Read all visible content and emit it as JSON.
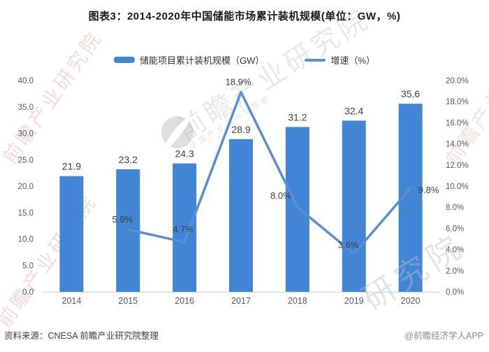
{
  "title": "图表3：2014-2020年中国储能市场累计装机规模(单位：GW，%)",
  "footer": {
    "source": "资料来源：CNESA 前瞻产业研究院整理",
    "copyright": "@前瞻经济学人APP"
  },
  "watermark": {
    "brand": "前瞻产业研究院",
    "sub": "中国产业咨询领导者",
    "fragment": "研究院"
  },
  "chart_data": {
    "type": "bar",
    "subtype": "bar+line combo, dual axis",
    "categories": [
      "2014",
      "2015",
      "2016",
      "2017",
      "2018",
      "2019",
      "2020"
    ],
    "series": [
      {
        "name": "储能项目累计装机规模（GW）",
        "type": "bar",
        "axis": "left",
        "color": "#4285d4",
        "values": [
          21.9,
          23.2,
          24.3,
          28.9,
          31.2,
          32.4,
          35.6
        ]
      },
      {
        "name": "增速（%）",
        "type": "line",
        "axis": "right",
        "color": "#5a8ed8",
        "values": [
          null,
          5.9,
          4.7,
          18.9,
          8.0,
          3.6,
          9.8
        ],
        "label_offsets": [
          [
            -8,
            -10
          ],
          [
            -2,
            -14
          ],
          [
            -4,
            -10
          ],
          [
            -24,
            -12
          ],
          [
            -8,
            -8
          ],
          [
            26,
            7
          ]
        ]
      }
    ],
    "left_axis": {
      "min": 0,
      "max": 40,
      "ticks": [
        "0.0",
        "5.0",
        "10.0",
        "15.0",
        "20.0",
        "25.0",
        "30.0",
        "35.0",
        "40.0"
      ]
    },
    "right_axis": {
      "min": 0,
      "max": 20,
      "ticks": [
        "0.0%",
        "2.0%",
        "4.0%",
        "6.0%",
        "8.0%",
        "10.0%",
        "12.0%",
        "14.0%",
        "16.0%",
        "18.0%",
        "20.0%"
      ]
    },
    "grid": false,
    "legend_position": "top"
  }
}
